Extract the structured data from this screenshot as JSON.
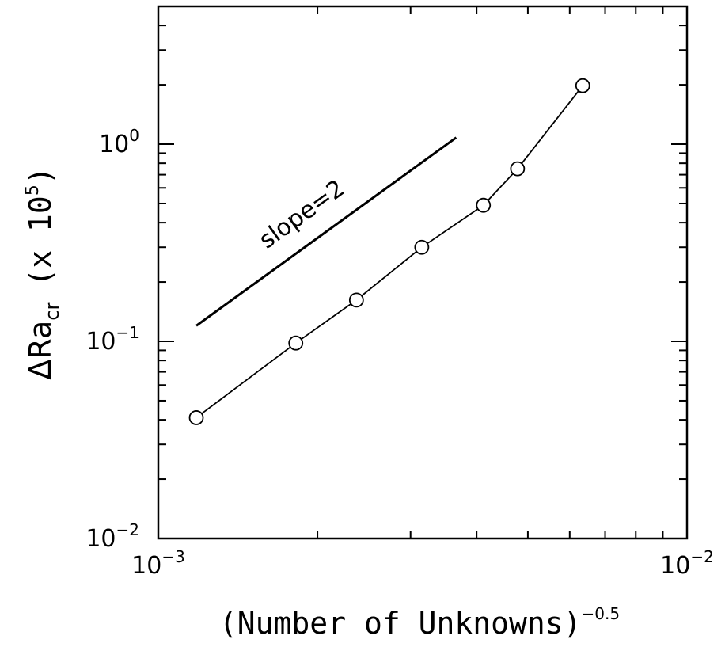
{
  "chart_data": {
    "type": "line",
    "x_scale": "log",
    "y_scale": "log",
    "xlim": [
      0.001,
      0.01
    ],
    "ylim": [
      0.01,
      5
    ],
    "grid": false,
    "xlabel": {
      "text": "(Number of Unknowns)",
      "superscript": "−0.5"
    },
    "ylabel": {
      "prefix": "ΔRa",
      "subscript": "cr",
      "suffix": "(x 10",
      "superscript": "5",
      "close": ")"
    },
    "x_ticks": [
      {
        "base": "10",
        "exp": "−3",
        "value": 0.001
      },
      {
        "base": "10",
        "exp": "−2",
        "value": 0.01
      }
    ],
    "y_ticks": [
      {
        "base": "10",
        "exp": "−2",
        "value": 0.01
      },
      {
        "base": "10",
        "exp": "−1",
        "value": 0.1
      },
      {
        "base": "10",
        "exp": "0",
        "value": 1
      }
    ],
    "series": [
      {
        "marker": "open-circle",
        "x": [
          0.00118,
          0.00182,
          0.00237,
          0.00315,
          0.00412,
          0.00478,
          0.00635
        ],
        "y": [
          0.041,
          0.098,
          0.162,
          0.3,
          0.49,
          0.75,
          1.98
        ]
      }
    ],
    "reference_line": {
      "label": "slope=2",
      "x": [
        0.00118,
        0.00366
      ],
      "y": [
        0.12,
        1.08
      ]
    }
  }
}
